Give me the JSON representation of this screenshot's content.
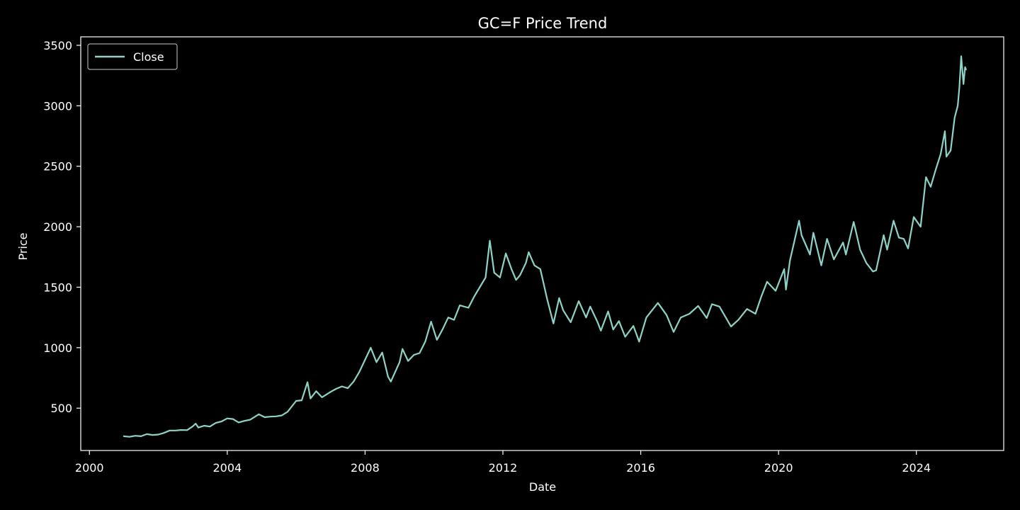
{
  "chart_data": {
    "type": "line",
    "title": "GC=F Price Trend",
    "xlabel": "Date",
    "ylabel": "Price",
    "xlim": [
      "1999-10-01",
      "2026-07-15"
    ],
    "ylim": [
      150,
      3570
    ],
    "x_ticks": [
      "2000",
      "2004",
      "2008",
      "2012",
      "2016",
      "2020",
      "2024"
    ],
    "y_ticks": [
      "500",
      "1000",
      "1500",
      "2000",
      "2500",
      "3000",
      "3500"
    ],
    "grid": false,
    "legend_position": "top-left",
    "colors": {
      "background": "#000000",
      "axes": "#ffffff",
      "text": "#ffffff",
      "line": "#8dd3c7"
    },
    "series": [
      {
        "name": "Close",
        "color": "#8dd3c7",
        "points": [
          [
            "2001-01-01",
            268
          ],
          [
            "2001-03-01",
            263
          ],
          [
            "2001-05-01",
            272
          ],
          [
            "2001-07-01",
            268
          ],
          [
            "2001-09-01",
            285
          ],
          [
            "2001-11-01",
            278
          ],
          [
            "2002-01-01",
            282
          ],
          [
            "2002-03-01",
            295
          ],
          [
            "2002-05-01",
            315
          ],
          [
            "2002-07-01",
            315
          ],
          [
            "2002-09-01",
            320
          ],
          [
            "2002-11-01",
            318
          ],
          [
            "2003-01-01",
            350
          ],
          [
            "2003-02-01",
            372
          ],
          [
            "2003-03-01",
            340
          ],
          [
            "2003-05-01",
            355
          ],
          [
            "2003-07-01",
            348
          ],
          [
            "2003-09-01",
            378
          ],
          [
            "2003-11-01",
            390
          ],
          [
            "2004-01-01",
            415
          ],
          [
            "2004-03-01",
            410
          ],
          [
            "2004-05-01",
            382
          ],
          [
            "2004-07-01",
            395
          ],
          [
            "2004-09-01",
            405
          ],
          [
            "2004-12-01",
            450
          ],
          [
            "2005-02-01",
            425
          ],
          [
            "2005-04-01",
            430
          ],
          [
            "2005-06-01",
            432
          ],
          [
            "2005-08-01",
            440
          ],
          [
            "2005-10-01",
            470
          ],
          [
            "2006-01-01",
            560
          ],
          [
            "2006-03-01",
            565
          ],
          [
            "2006-05-01",
            715
          ],
          [
            "2006-06-01",
            580
          ],
          [
            "2006-08-01",
            640
          ],
          [
            "2006-10-01",
            590
          ],
          [
            "2007-01-01",
            635
          ],
          [
            "2007-03-01",
            660
          ],
          [
            "2007-05-01",
            680
          ],
          [
            "2007-07-01",
            665
          ],
          [
            "2007-09-01",
            720
          ],
          [
            "2007-11-01",
            800
          ],
          [
            "2008-01-01",
            900
          ],
          [
            "2008-03-01",
            1000
          ],
          [
            "2008-05-01",
            880
          ],
          [
            "2008-07-01",
            960
          ],
          [
            "2008-09-01",
            760
          ],
          [
            "2008-10-01",
            720
          ],
          [
            "2009-01-01",
            880
          ],
          [
            "2009-02-01",
            990
          ],
          [
            "2009-04-01",
            890
          ],
          [
            "2009-06-01",
            940
          ],
          [
            "2009-08-01",
            955
          ],
          [
            "2009-10-01",
            1050
          ],
          [
            "2009-12-01",
            1215
          ],
          [
            "2010-02-01",
            1065
          ],
          [
            "2010-04-01",
            1150
          ],
          [
            "2010-06-01",
            1250
          ],
          [
            "2010-08-01",
            1230
          ],
          [
            "2010-10-01",
            1350
          ],
          [
            "2011-01-01",
            1330
          ],
          [
            "2011-03-01",
            1420
          ],
          [
            "2011-05-01",
            1500
          ],
          [
            "2011-07-01",
            1580
          ],
          [
            "2011-08-15",
            1885
          ],
          [
            "2011-10-01",
            1620
          ],
          [
            "2011-12-01",
            1580
          ],
          [
            "2012-02-01",
            1780
          ],
          [
            "2012-04-01",
            1650
          ],
          [
            "2012-05-20",
            1560
          ],
          [
            "2012-07-01",
            1600
          ],
          [
            "2012-09-01",
            1700
          ],
          [
            "2012-10-01",
            1790
          ],
          [
            "2012-12-01",
            1680
          ],
          [
            "2013-02-01",
            1650
          ],
          [
            "2013-04-15",
            1400
          ],
          [
            "2013-06-20",
            1200
          ],
          [
            "2013-08-20",
            1410
          ],
          [
            "2013-10-01",
            1310
          ],
          [
            "2013-12-20",
            1210
          ],
          [
            "2014-03-15",
            1385
          ],
          [
            "2014-06-01",
            1250
          ],
          [
            "2014-07-15",
            1340
          ],
          [
            "2014-10-01",
            1210
          ],
          [
            "2014-11-05",
            1140
          ],
          [
            "2015-01-20",
            1300
          ],
          [
            "2015-03-15",
            1150
          ],
          [
            "2015-05-15",
            1220
          ],
          [
            "2015-07-20",
            1090
          ],
          [
            "2015-10-15",
            1180
          ],
          [
            "2015-12-15",
            1050
          ],
          [
            "2016-03-01",
            1250
          ],
          [
            "2016-07-01",
            1370
          ],
          [
            "2016-10-01",
            1270
          ],
          [
            "2016-12-15",
            1130
          ],
          [
            "2017-03-01",
            1250
          ],
          [
            "2017-06-01",
            1280
          ],
          [
            "2017-09-01",
            1345
          ],
          [
            "2017-12-01",
            1245
          ],
          [
            "2018-01-25",
            1360
          ],
          [
            "2018-04-15",
            1340
          ],
          [
            "2018-08-15",
            1175
          ],
          [
            "2018-11-01",
            1230
          ],
          [
            "2019-02-01",
            1320
          ],
          [
            "2019-05-01",
            1280
          ],
          [
            "2019-07-01",
            1420
          ],
          [
            "2019-09-01",
            1545
          ],
          [
            "2019-12-01",
            1470
          ],
          [
            "2020-03-01",
            1650
          ],
          [
            "2020-03-20",
            1480
          ],
          [
            "2020-05-01",
            1720
          ],
          [
            "2020-08-06",
            2050
          ],
          [
            "2020-09-01",
            1930
          ],
          [
            "2020-11-30",
            1770
          ],
          [
            "2021-01-05",
            1950
          ],
          [
            "2021-03-30",
            1680
          ],
          [
            "2021-05-30",
            1900
          ],
          [
            "2021-08-10",
            1730
          ],
          [
            "2021-11-15",
            1870
          ],
          [
            "2021-12-15",
            1770
          ],
          [
            "2022-03-08",
            2040
          ],
          [
            "2022-05-15",
            1810
          ],
          [
            "2022-07-20",
            1700
          ],
          [
            "2022-09-28",
            1630
          ],
          [
            "2022-11-01",
            1640
          ],
          [
            "2023-01-20",
            1930
          ],
          [
            "2023-02-25",
            1810
          ],
          [
            "2023-05-04",
            2050
          ],
          [
            "2023-06-30",
            1910
          ],
          [
            "2023-08-20",
            1900
          ],
          [
            "2023-10-05",
            1820
          ],
          [
            "2023-12-04",
            2080
          ],
          [
            "2024-02-15",
            2000
          ],
          [
            "2024-04-12",
            2410
          ],
          [
            "2024-06-01",
            2330
          ],
          [
            "2024-07-20",
            2460
          ],
          [
            "2024-09-15",
            2600
          ],
          [
            "2024-10-30",
            2790
          ],
          [
            "2024-11-15",
            2580
          ],
          [
            "2024-12-30",
            2630
          ],
          [
            "2025-02-10",
            2900
          ],
          [
            "2025-03-15",
            3000
          ],
          [
            "2025-04-01",
            3150
          ],
          [
            "2025-04-21",
            3410
          ],
          [
            "2025-05-15",
            3180
          ],
          [
            "2025-06-01",
            3320
          ],
          [
            "2025-06-10",
            3300
          ]
        ]
      }
    ]
  }
}
